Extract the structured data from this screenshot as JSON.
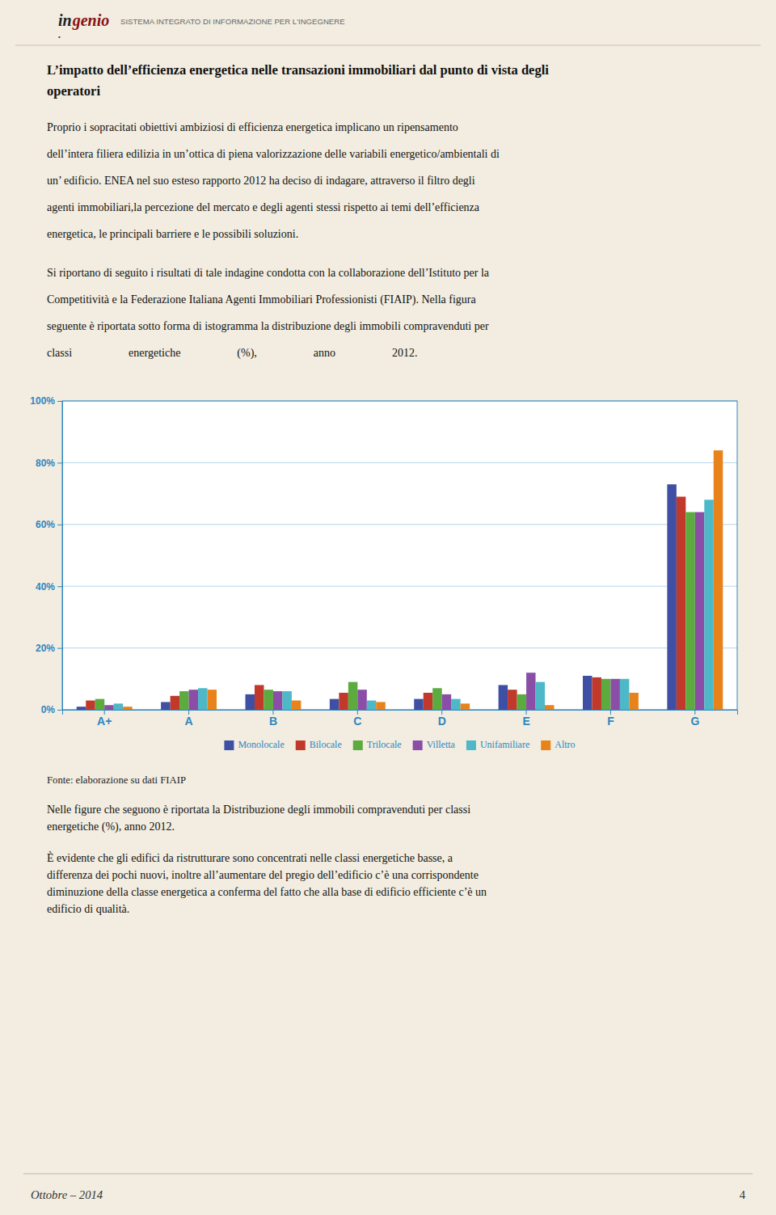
{
  "page": {
    "logo_part1": "in",
    "logo_part2": "genio",
    "logo_dot": "•",
    "header_text": "SISTEMA INTEGRATO DI INFORMAZIONE PER L'INGEGNERE",
    "title_lines": [
      "L’impatto dell’efficienza energetica nelle transazioni immobiliari dal punto di vista degli",
      "operatori"
    ],
    "paragraph1_lines": [
      "Proprio i sopracitati obiettivi ambiziosi di efficienza energetica implicano un ripensamento",
      "dell’intera filiera edilizia in un’ottica di piena valorizzazione delle variabili energetico/ambientali di",
      "un’ edificio. ENEA nel suo esteso rapporto 2012 ha deciso di indagare, attraverso il filtro degli",
      "agenti immobiliari,la percezione del mercato e degli agenti stessi rispetto ai temi dell’efficienza",
      "energetica, le principali barriere e le possibili soluzioni."
    ],
    "paragraph2_lines": [
      "Si riportano di seguito i risultati di tale indagine condotta con la collaborazione dell’Istituto per la",
      "Competitività e la Federazione Italiana Agenti Immobiliari Professionisti (FIAIP). Nella figura",
      "seguente è riportata sotto forma di istogramma la distribuzione degli immobili compravenduti per",
      "classi                    energetiche                    (%),                    anno                    2012."
    ],
    "source_text": "Fonte: elaborazione su dati FIAIP",
    "paragraph3_lines": [
      "Nelle figure che seguono è riportata la Distribuzione degli immobili compravenduti per classi",
      "energetiche (%), anno 2012."
    ],
    "paragraph4_lines": [
      "È evidente che gli edifici da ristrutturare sono concentrati nelle classi energetiche basse, a",
      "differenza dei pochi nuovi, inoltre all’aumentare del pregio dell’edificio c’è una corrispondente",
      "diminuzione della classe energetica a conferma del fatto che alla base di edificio efficiente c’è un",
      "edificio di qualità."
    ],
    "footer_left": "Ottobre – 2014",
    "footer_right": "4"
  },
  "chart_data": {
    "type": "bar",
    "categories": [
      "A+",
      "A",
      "B",
      "C",
      "D",
      "E",
      "F",
      "G"
    ],
    "series": [
      {
        "name": "Monolocale",
        "color": "#3F4FA3",
        "values": [
          1.0,
          2.5,
          5.0,
          3.5,
          3.5,
          8.0,
          11.0,
          73.0
        ]
      },
      {
        "name": "Bilocale",
        "color": "#C0392B",
        "values": [
          3.0,
          4.5,
          8.0,
          5.5,
          5.5,
          6.5,
          10.5,
          69.0
        ]
      },
      {
        "name": "Trilocale",
        "color": "#5BAB3E",
        "values": [
          3.5,
          6.0,
          6.5,
          9.0,
          7.0,
          5.0,
          10.0,
          64.0
        ]
      },
      {
        "name": "Villetta",
        "color": "#8B4EA6",
        "values": [
          1.5,
          6.5,
          6.0,
          6.5,
          5.0,
          12.0,
          10.0,
          64.0
        ]
      },
      {
        "name": "Unifamiliare",
        "color": "#4DB8C8",
        "values": [
          2.0,
          7.0,
          6.0,
          3.0,
          3.5,
          9.0,
          10.0,
          68.0
        ]
      },
      {
        "name": "Altro",
        "color": "#E8821A",
        "values": [
          1.0,
          6.5,
          3.0,
          2.5,
          2.0,
          1.5,
          5.5,
          84.0
        ]
      }
    ],
    "ylim": [
      0,
      100
    ],
    "yticks": [
      {
        "value": 0,
        "label": "0%"
      },
      {
        "value": 20,
        "label": "20%"
      },
      {
        "value": 40,
        "label": "40%"
      },
      {
        "value": 60,
        "label": "60%"
      },
      {
        "value": 80,
        "label": "80%"
      },
      {
        "value": 100,
        "label": "100%"
      }
    ],
    "grid": true,
    "legend": "bottom"
  }
}
